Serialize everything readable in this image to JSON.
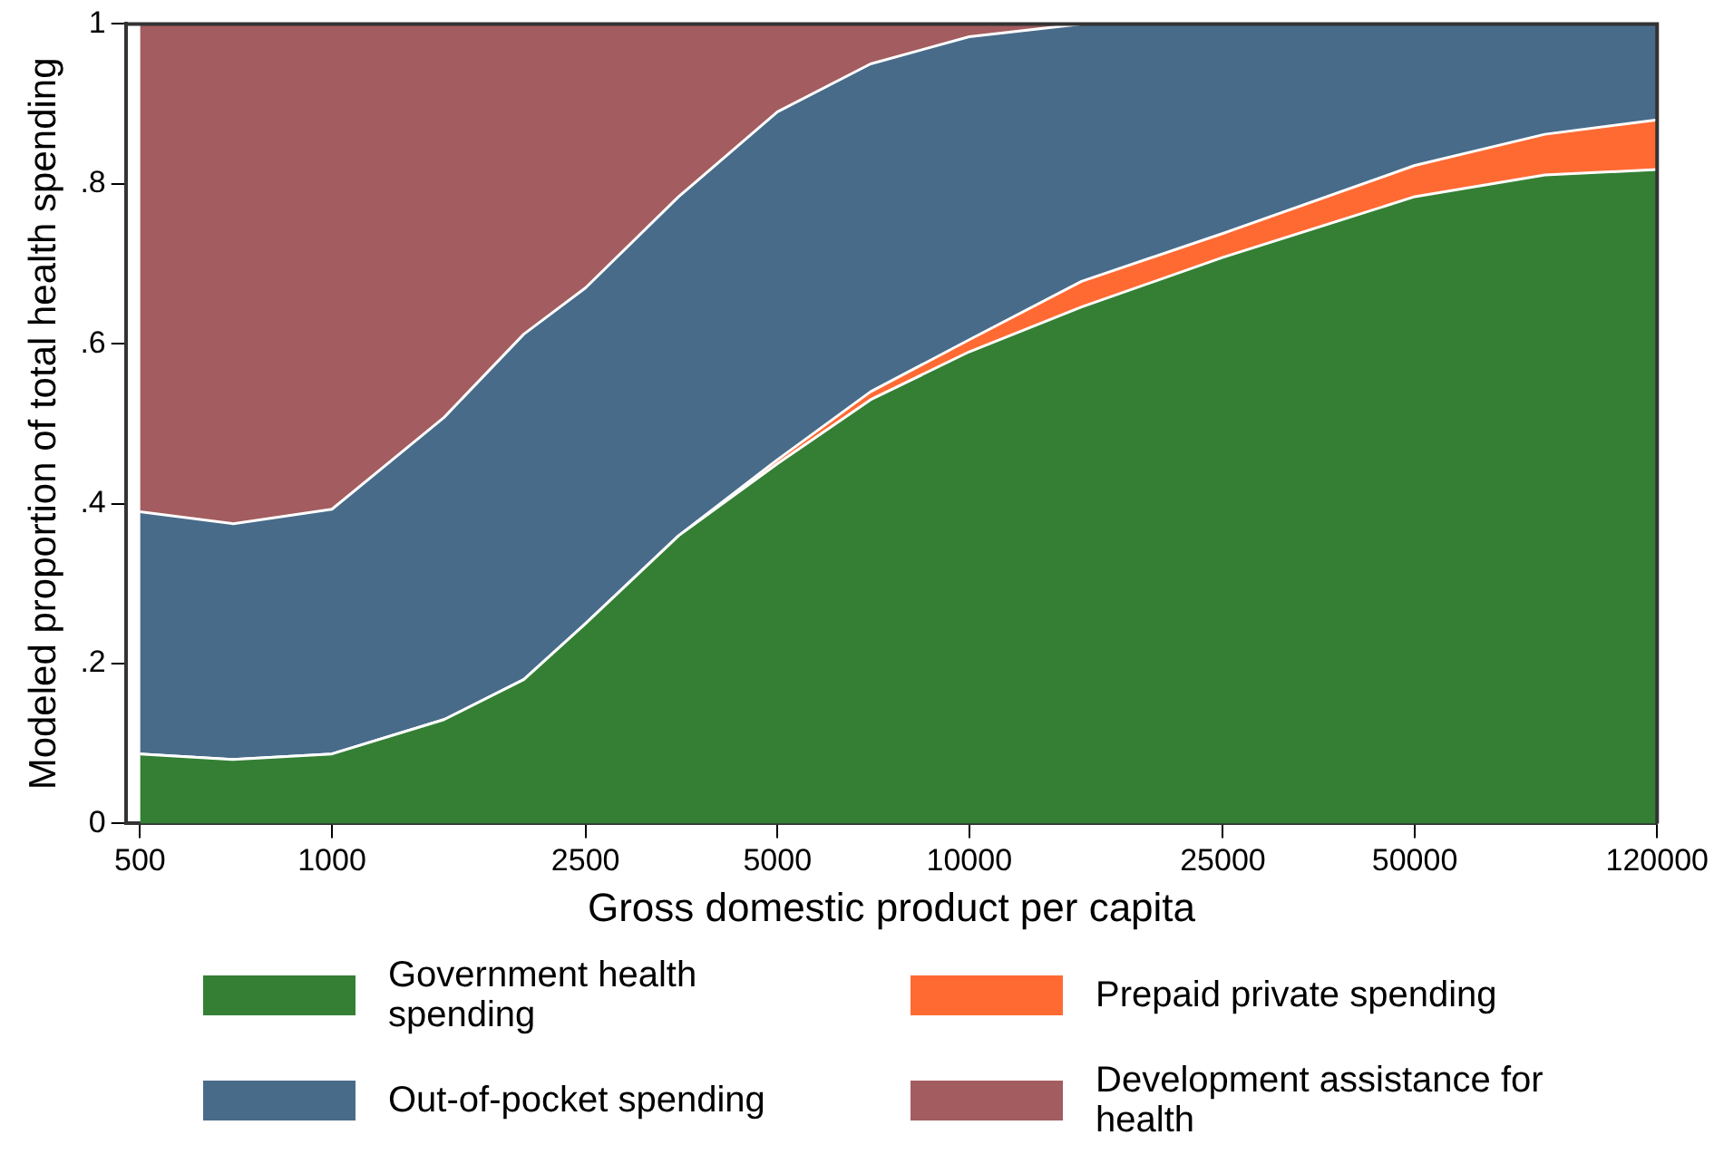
{
  "chart_data": {
    "type": "area",
    "stacked": true,
    "xlabel": "Gross domestic product per capita",
    "ylabel": "Modeled proportion of total health spending",
    "log": "x",
    "grid": false,
    "legend": "bottom",
    "x": [
      500,
      700,
      1000,
      1500,
      2000,
      2500,
      3500,
      5000,
      7000,
      10000,
      15000,
      25000,
      50000,
      80000,
      120000
    ],
    "xlim": [
      475,
      120000
    ],
    "xticks": [
      500,
      1000,
      2500,
      5000,
      10000,
      25000,
      50000,
      120000
    ],
    "ylim": [
      0,
      1
    ],
    "yticks": [
      0,
      {
        "value": 0.2,
        "label": ".2"
      },
      {
        "value": 0.4,
        "label": ".4"
      },
      {
        "value": 0.6,
        "label": ".6"
      },
      {
        "value": 0.8,
        "label": ".8"
      },
      1
    ],
    "series": [
      {
        "name": "Government health spending",
        "color": "#347f34",
        "values": [
          0.087,
          0.08,
          0.087,
          0.13,
          0.18,
          0.25,
          0.36,
          0.45,
          0.53,
          0.59,
          0.646,
          0.708,
          0.784,
          0.811,
          0.818
        ]
      },
      {
        "name": "Prepaid private spending",
        "color": "#ff6a33",
        "values": [
          0,
          0,
          0,
          0,
          0,
          0,
          0,
          0.005,
          0.01,
          0.015,
          0.032,
          0.03,
          0.039,
          0.051,
          0.062
        ]
      },
      {
        "name": "Out-of-pocket spending",
        "color": "#486b8a",
        "values": [
          0.303,
          0.295,
          0.306,
          0.378,
          0.432,
          0.42,
          0.424,
          0.435,
          0.41,
          0.379,
          0.322,
          0.262,
          0.177,
          0.138,
          0.12
        ]
      },
      {
        "name": "Development assistance for health",
        "color": "#a35c5f",
        "values": [
          0.61,
          0.625,
          0.607,
          0.492,
          0.388,
          0.33,
          0.216,
          0.11,
          0.05,
          0.016,
          0,
          0,
          0,
          0,
          0
        ]
      }
    ]
  }
}
